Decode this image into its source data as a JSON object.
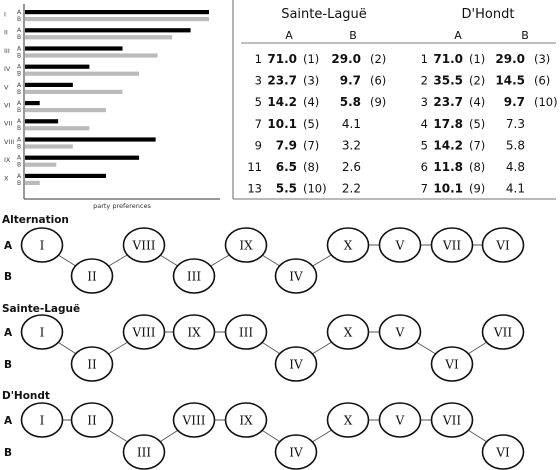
{
  "chart_data": {
    "type": "bar",
    "orientation": "horizontal",
    "categories": [
      "I",
      "II",
      "III",
      "IV",
      "V",
      "VI",
      "VII",
      "VIII",
      "IX",
      "X"
    ],
    "series": [
      {
        "name": "A",
        "color": "#000000",
        "values": [
          100,
          90,
          53,
          35,
          26,
          8,
          18,
          71,
          62,
          44
        ]
      },
      {
        "name": "B",
        "color": "#bbbbbb",
        "values": [
          100,
          80,
          72,
          62,
          53,
          44,
          35,
          26,
          17,
          8
        ]
      }
    ],
    "xlabel": "party preferences",
    "xlim": [
      0,
      100
    ],
    "grid": false,
    "legend": "none"
  },
  "table": {
    "sainte_lague": {
      "title": "Sainte-Laguë",
      "col_a": "A",
      "col_b": "B",
      "rows": [
        {
          "div": "1",
          "a": "71.0",
          "ar": "(1)",
          "b": "29.0",
          "br": "(2)",
          "a_bold": true,
          "b_bold": true
        },
        {
          "div": "3",
          "a": "23.7",
          "ar": "(3)",
          "b": "9.7",
          "br": "(6)",
          "a_bold": true,
          "b_bold": true
        },
        {
          "div": "5",
          "a": "14.2",
          "ar": "(4)",
          "b": "5.8",
          "br": "(9)",
          "a_bold": true,
          "b_bold": true
        },
        {
          "div": "7",
          "a": "10.1",
          "ar": "(5)",
          "b": "4.1",
          "br": "",
          "a_bold": true,
          "b_bold": false
        },
        {
          "div": "9",
          "a": "7.9",
          "ar": "(7)",
          "b": "3.2",
          "br": "",
          "a_bold": true,
          "b_bold": false
        },
        {
          "div": "11",
          "a": "6.5",
          "ar": "(8)",
          "b": "2.6",
          "br": "",
          "a_bold": true,
          "b_bold": false
        },
        {
          "div": "13",
          "a": "5.5",
          "ar": "(10)",
          "b": "2.2",
          "br": "",
          "a_bold": true,
          "b_bold": false
        }
      ]
    },
    "dhondt": {
      "title": "D'Hondt",
      "col_a": "A",
      "col_b": "B",
      "rows": [
        {
          "div": "1",
          "a": "71.0",
          "ar": "(1)",
          "b": "29.0",
          "br": "(3)",
          "a_bold": true,
          "b_bold": true
        },
        {
          "div": "2",
          "a": "35.5",
          "ar": "(2)",
          "b": "14.5",
          "br": "(6)",
          "a_bold": true,
          "b_bold": true
        },
        {
          "div": "3",
          "a": "23.7",
          "ar": "(4)",
          "b": "9.7",
          "br": "(10)",
          "a_bold": true,
          "b_bold": true
        },
        {
          "div": "4",
          "a": "17.8",
          "ar": "(5)",
          "b": "7.3",
          "br": "",
          "a_bold": true,
          "b_bold": false
        },
        {
          "div": "5",
          "a": "14.2",
          "ar": "(7)",
          "b": "5.8",
          "br": "",
          "a_bold": true,
          "b_bold": false
        },
        {
          "div": "6",
          "a": "11.8",
          "ar": "(8)",
          "b": "4.8",
          "br": "",
          "a_bold": true,
          "b_bold": false
        },
        {
          "div": "7",
          "a": "10.1",
          "ar": "(9)",
          "b": "4.1",
          "br": "",
          "a_bold": true,
          "b_bold": false
        }
      ]
    }
  },
  "diagrams": [
    {
      "title": "Alternation",
      "row_labels": [
        "A",
        "B"
      ],
      "nodes": [
        {
          "label": "I",
          "row": "A"
        },
        {
          "label": "II",
          "row": "B"
        },
        {
          "label": "VIII",
          "row": "A"
        },
        {
          "label": "III",
          "row": "B"
        },
        {
          "label": "IX",
          "row": "A"
        },
        {
          "label": "IV",
          "row": "B"
        },
        {
          "label": "X",
          "row": "A"
        },
        {
          "label": "V",
          "row": "A"
        },
        {
          "label": "VII",
          "row": "A"
        },
        {
          "label": "VI",
          "row": "A"
        }
      ]
    },
    {
      "title": "Sainte-Laguë",
      "row_labels": [
        "A",
        "B"
      ],
      "nodes": [
        {
          "label": "I",
          "row": "A"
        },
        {
          "label": "II",
          "row": "B"
        },
        {
          "label": "VIII",
          "row": "A"
        },
        {
          "label": "IX",
          "row": "A"
        },
        {
          "label": "III",
          "row": "A"
        },
        {
          "label": "IV",
          "row": "B"
        },
        {
          "label": "X",
          "row": "A"
        },
        {
          "label": "V",
          "row": "A"
        },
        {
          "label": "VI",
          "row": "B"
        },
        {
          "label": "VII",
          "row": "A"
        }
      ]
    },
    {
      "title": "D'Hondt",
      "row_labels": [
        "A",
        "B"
      ],
      "nodes": [
        {
          "label": "I",
          "row": "A"
        },
        {
          "label": "II",
          "row": "A"
        },
        {
          "label": "III",
          "row": "B"
        },
        {
          "label": "VIII",
          "row": "A"
        },
        {
          "label": "IX",
          "row": "A"
        },
        {
          "label": "IV",
          "row": "B"
        },
        {
          "label": "X",
          "row": "A"
        },
        {
          "label": "V",
          "row": "A"
        },
        {
          "label": "VII",
          "row": "A"
        },
        {
          "label": "VI",
          "row": "B"
        }
      ]
    }
  ]
}
